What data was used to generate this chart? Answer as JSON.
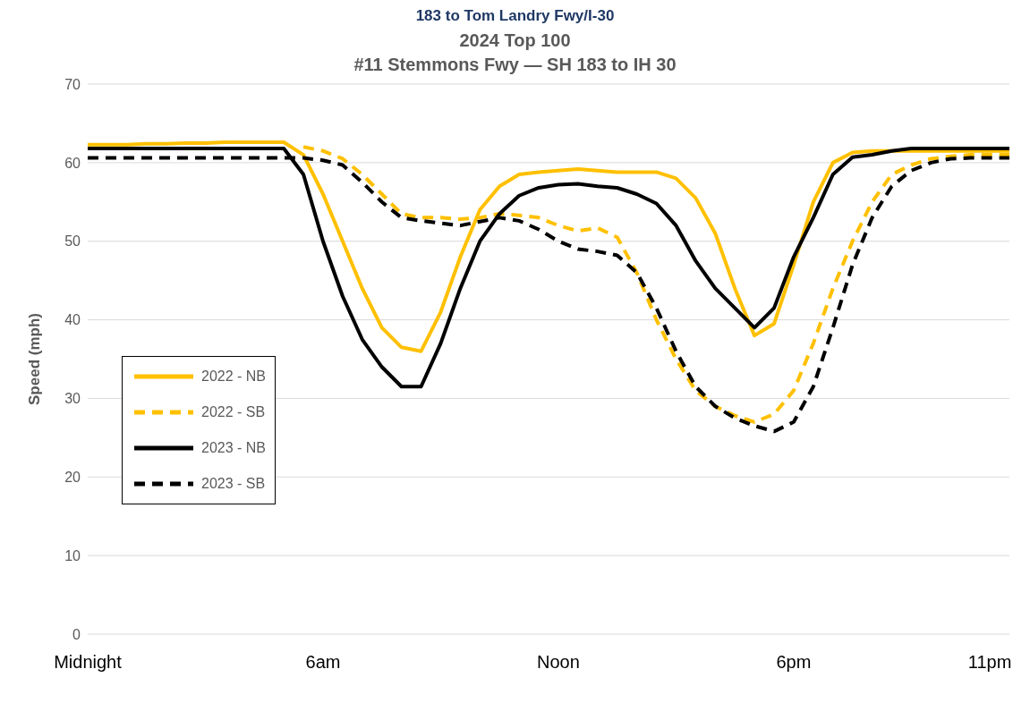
{
  "chart_data": {
    "type": "line",
    "title": "2024 Top 100",
    "subtitle": "#11 Stemmons Fwy —  SH 183 to IH 30",
    "annotations": [
      "183 to Tom Landry Fwy/I-30"
    ],
    "ylabel": "Speed (mph)",
    "categories": [
      "Midnight",
      null,
      null,
      null,
      null,
      null,
      null,
      null,
      null,
      null,
      null,
      null,
      "6am",
      null,
      null,
      null,
      null,
      null,
      null,
      null,
      null,
      null,
      null,
      null,
      "Noon",
      null,
      null,
      null,
      null,
      null,
      null,
      null,
      null,
      null,
      null,
      null,
      "6pm",
      null,
      null,
      null,
      null,
      null,
      null,
      null,
      null,
      null,
      "11pm",
      null
    ],
    "ylim": [
      0,
      70
    ],
    "yticks": [
      0,
      10,
      20,
      30,
      40,
      50,
      60,
      70
    ],
    "grid": "y",
    "legend": "bottom left",
    "marker": "none",
    "series": [
      {
        "name": "2022 - NB",
        "color": "#ffc000",
        "line_style": "solid",
        "values": [
          62.3,
          62.3,
          62.3,
          62.4,
          62.4,
          62.5,
          62.5,
          62.6,
          62.6,
          62.6,
          62.6,
          61,
          56,
          50,
          44,
          39,
          36.5,
          36,
          41,
          48,
          54,
          57,
          58.5,
          58.8,
          59,
          59.2,
          59,
          58.8,
          58.8,
          58.8,
          58,
          55.5,
          51,
          44,
          38,
          39.5,
          47,
          55,
          60,
          61.3,
          61.5,
          61.5,
          61.5,
          61.5,
          61.5,
          61.5,
          61.5,
          61.5
        ]
      },
      {
        "name": "2022 - SB",
        "color": "#ffc000",
        "line_style": "dashed",
        "values": [
          null,
          null,
          null,
          null,
          null,
          null,
          null,
          null,
          null,
          null,
          null,
          62,
          61.5,
          60.5,
          58.5,
          56,
          53.5,
          53,
          53,
          52.8,
          53,
          53.5,
          53.3,
          53,
          52,
          51.3,
          51.7,
          50.5,
          46,
          40,
          35,
          31,
          29,
          27.8,
          27,
          28,
          31,
          37,
          44,
          50,
          55,
          58.5,
          59.7,
          60.5,
          60.8,
          61,
          61,
          61
        ]
      },
      {
        "name": "2023 - NB",
        "color": "#000000",
        "line_style": "solid",
        "values": [
          61.8,
          61.8,
          61.8,
          61.8,
          61.8,
          61.8,
          61.8,
          61.8,
          61.8,
          61.8,
          61.8,
          58.5,
          50,
          43,
          37.5,
          34,
          31.5,
          31.5,
          37,
          44,
          50,
          53.5,
          55.8,
          56.8,
          57.2,
          57.3,
          57,
          56.8,
          56,
          54.8,
          52,
          47.5,
          44,
          41.5,
          39,
          41.5,
          48,
          53,
          58.5,
          60.7,
          61,
          61.5,
          61.8,
          61.8,
          61.8,
          61.8,
          61.8,
          61.8
        ]
      },
      {
        "name": "2023 - SB",
        "color": "#000000",
        "line_style": "dashed",
        "values": [
          60.6,
          60.6,
          60.6,
          60.6,
          60.6,
          60.6,
          60.6,
          60.6,
          60.6,
          60.6,
          60.6,
          60.6,
          60.3,
          59.7,
          57.5,
          55,
          53,
          52.6,
          52.3,
          52,
          52.5,
          53,
          52.6,
          51.5,
          50,
          49,
          48.7,
          48.2,
          46,
          41.5,
          36,
          31.5,
          29,
          27.5,
          26.5,
          25.8,
          27,
          31.5,
          39,
          47,
          53,
          57,
          59,
          60,
          60.5,
          60.6,
          60.6,
          60.6
        ]
      }
    ]
  }
}
